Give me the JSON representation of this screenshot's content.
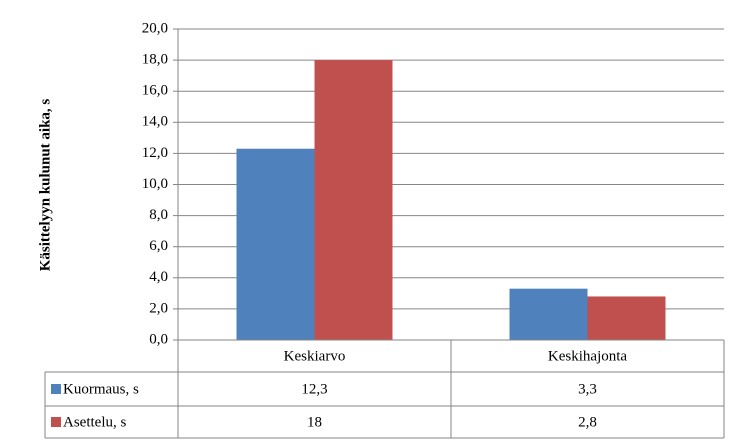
{
  "chart_data": {
    "type": "bar",
    "y_label": "Käsittelyyn kulunut aika, s",
    "categories": [
      "Keskiarvo",
      "Keskihajonta"
    ],
    "series": [
      {
        "name": "Kuormaus, s",
        "color": "#4f81bd",
        "values": [
          12.3,
          3.3
        ],
        "value_labels": [
          "12,3",
          "3,3"
        ]
      },
      {
        "name": "Asettelu, s",
        "color": "#c0504d",
        "values": [
          18,
          2.8
        ],
        "value_labels": [
          "18",
          "2,8"
        ]
      }
    ],
    "ylim": [
      0,
      20
    ],
    "yticks": [
      {
        "value": 0,
        "label": "0,0"
      },
      {
        "value": 2,
        "label": "2,0"
      },
      {
        "value": 4,
        "label": "4,0"
      },
      {
        "value": 6,
        "label": "6,0"
      },
      {
        "value": 8,
        "label": "8,0"
      },
      {
        "value": 10,
        "label": "10,0"
      },
      {
        "value": 12,
        "label": "12,0"
      },
      {
        "value": 14,
        "label": "14,0"
      },
      {
        "value": 16,
        "label": "16,0"
      },
      {
        "value": 18,
        "label": "18,0"
      },
      {
        "value": 20,
        "label": "20,0"
      }
    ],
    "grid": true,
    "data_table": true
  }
}
